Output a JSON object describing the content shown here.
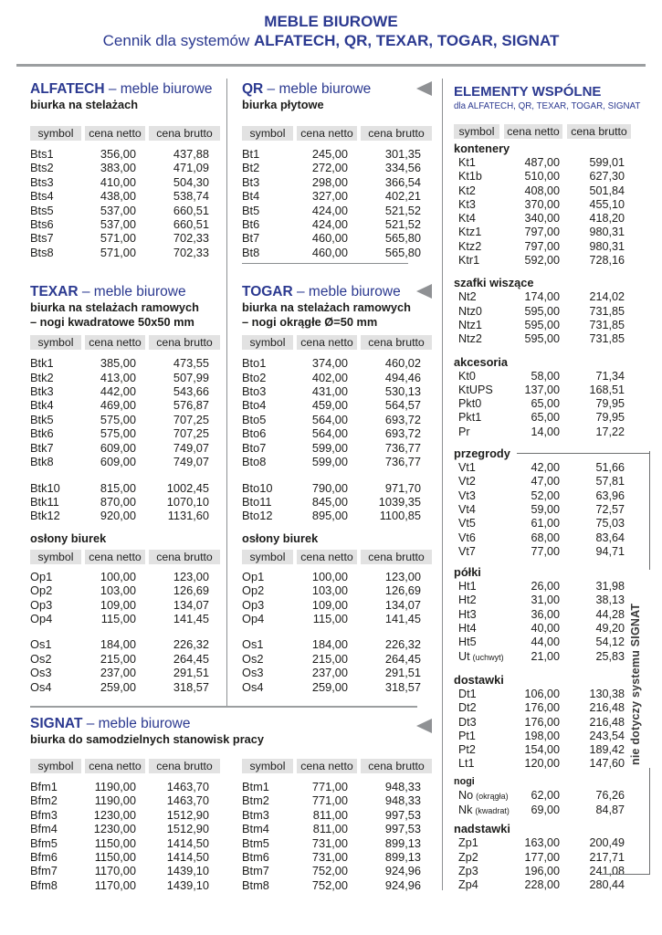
{
  "page": {
    "title": "MEBLE BIUROWE",
    "subtitle_prefix": "Cennik dla systemów ",
    "subtitle_systems": "ALFATECH, QR, TEXAR, TOGAR, SIGNAT"
  },
  "table_headers": [
    "symbol",
    "cena netto",
    "cena brutto"
  ],
  "sections": {
    "alfatech": {
      "name": "ALFATECH",
      "suffix": " – meble biurowe",
      "subtitle_lines": [
        "biurka na stelażach"
      ],
      "row_groups": [
        [
          [
            "Bts1",
            "356,00",
            "437,88"
          ],
          [
            "Bts2",
            "383,00",
            "471,09"
          ],
          [
            "Bts3",
            "410,00",
            "504,30"
          ],
          [
            "Bts4",
            "438,00",
            "538,74"
          ],
          [
            "Bts5",
            "537,00",
            "660,51"
          ],
          [
            "Bts6",
            "537,00",
            "660,51"
          ],
          [
            "Bts7",
            "571,00",
            "702,33"
          ],
          [
            "Bts8",
            "571,00",
            "702,33"
          ]
        ]
      ]
    },
    "qr": {
      "name": "QR",
      "suffix": " – meble biurowe",
      "subtitle_lines": [
        "biurka płytowe"
      ],
      "row_groups": [
        [
          [
            "Bt1",
            "245,00",
            "301,35"
          ],
          [
            "Bt2",
            "272,00",
            "334,56"
          ],
          [
            "Bt3",
            "298,00",
            "366,54"
          ],
          [
            "Bt4",
            "327,00",
            "402,21"
          ],
          [
            "Bt5",
            "424,00",
            "521,52"
          ],
          [
            "Bt6",
            "424,00",
            "521,52"
          ],
          [
            "Bt7",
            "460,00",
            "565,80"
          ],
          [
            "Bt8",
            "460,00",
            "565,80"
          ]
        ]
      ]
    },
    "texar": {
      "name": "TEXAR",
      "suffix": " – meble biurowe",
      "subtitle_lines": [
        "biurka na stelażach ramowych",
        "– nogi kwadratowe 50x50 mm"
      ],
      "row_groups": [
        [
          [
            "Btk1",
            "385,00",
            "473,55"
          ],
          [
            "Btk2",
            "413,00",
            "507,99"
          ],
          [
            "Btk3",
            "442,00",
            "543,66"
          ],
          [
            "Btk4",
            "469,00",
            "576,87"
          ],
          [
            "Btk5",
            "575,00",
            "707,25"
          ],
          [
            "Btk6",
            "575,00",
            "707,25"
          ],
          [
            "Btk7",
            "609,00",
            "749,07"
          ],
          [
            "Btk8",
            "609,00",
            "749,07"
          ]
        ],
        [
          [
            "Btk10",
            "815,00",
            "1002,45"
          ],
          [
            "Btk11",
            "870,00",
            "1070,10"
          ],
          [
            "Btk12",
            "920,00",
            "1131,60"
          ]
        ]
      ]
    },
    "togar": {
      "name": "TOGAR",
      "suffix": " – meble biurowe",
      "subtitle_lines": [
        "biurka na stelażach ramowych",
        "– nogi okrągłe Ø=50 mm"
      ],
      "row_groups": [
        [
          [
            "Bto1",
            "374,00",
            "460,02"
          ],
          [
            "Bto2",
            "402,00",
            "494,46"
          ],
          [
            "Bto3",
            "431,00",
            "530,13"
          ],
          [
            "Bto4",
            "459,00",
            "564,57"
          ],
          [
            "Bto5",
            "564,00",
            "693,72"
          ],
          [
            "Bto6",
            "564,00",
            "693,72"
          ],
          [
            "Bto7",
            "599,00",
            "736,77"
          ],
          [
            "Bto8",
            "599,00",
            "736,77"
          ]
        ],
        [
          [
            "Bto10",
            "790,00",
            "971,70"
          ],
          [
            "Bto11",
            "845,00",
            "1039,35"
          ],
          [
            "Bto12",
            "895,00",
            "1100,85"
          ]
        ]
      ]
    },
    "oslony_left": {
      "label": "osłony biurek",
      "row_groups": [
        [
          [
            "Op1",
            "100,00",
            "123,00"
          ],
          [
            "Op2",
            "103,00",
            "126,69"
          ],
          [
            "Op3",
            "109,00",
            "134,07"
          ],
          [
            "Op4",
            "115,00",
            "141,45"
          ]
        ],
        [
          [
            "Os1",
            "184,00",
            "226,32"
          ],
          [
            "Os2",
            "215,00",
            "264,45"
          ],
          [
            "Os3",
            "237,00",
            "291,51"
          ],
          [
            "Os4",
            "259,00",
            "318,57"
          ]
        ]
      ]
    },
    "oslony_mid": {
      "label": "osłony biurek",
      "row_groups": [
        [
          [
            "Op1",
            "100,00",
            "123,00"
          ],
          [
            "Op2",
            "103,00",
            "126,69"
          ],
          [
            "Op3",
            "109,00",
            "134,07"
          ],
          [
            "Op4",
            "115,00",
            "141,45"
          ]
        ],
        [
          [
            "Os1",
            "184,00",
            "226,32"
          ],
          [
            "Os2",
            "215,00",
            "264,45"
          ],
          [
            "Os3",
            "237,00",
            "291,51"
          ],
          [
            "Os4",
            "259,00",
            "318,57"
          ]
        ]
      ]
    },
    "signat": {
      "name": "SIGNAT",
      "suffix": " – meble biurowe",
      "subtitle_lines": [
        "biurka do samodzielnych stanowisk pracy"
      ],
      "left_row_groups": [
        [
          [
            "Bfm1",
            "1190,00",
            "1463,70"
          ],
          [
            "Bfm2",
            "1190,00",
            "1463,70"
          ],
          [
            "Bfm3",
            "1230,00",
            "1512,90"
          ],
          [
            "Bfm4",
            "1230,00",
            "1512,90"
          ],
          [
            "Bfm5",
            "1150,00",
            "1414,50"
          ],
          [
            "Bfm6",
            "1150,00",
            "1414,50"
          ],
          [
            "Bfm7",
            "1170,00",
            "1439,10"
          ],
          [
            "Bfm8",
            "1170,00",
            "1439,10"
          ]
        ]
      ],
      "right_row_groups": [
        [
          [
            "Btm1",
            "771,00",
            "948,33"
          ],
          [
            "Btm2",
            "771,00",
            "948,33"
          ],
          [
            "Btm3",
            "811,00",
            "997,53"
          ],
          [
            "Btm4",
            "811,00",
            "997,53"
          ],
          [
            "Btm5",
            "731,00",
            "899,13"
          ],
          [
            "Btm6",
            "731,00",
            "899,13"
          ],
          [
            "Btm7",
            "752,00",
            "924,96"
          ],
          [
            "Btm8",
            "752,00",
            "924,96"
          ]
        ]
      ]
    }
  },
  "common": {
    "title": "ELEMENTY WSPÓLNE",
    "subtitle": "dla ALFATECH, QR, TEXAR, TOGAR, SIGNAT",
    "groups": [
      {
        "label": "kontenery",
        "rows": [
          [
            "Kt1",
            "487,00",
            "599,01"
          ],
          [
            "Kt1b",
            "510,00",
            "627,30"
          ],
          [
            "Kt2",
            "408,00",
            "501,84"
          ],
          [
            "Kt3",
            "370,00",
            "455,10"
          ],
          [
            "Kt4",
            "340,00",
            "418,20"
          ],
          [
            "Ktz1",
            "797,00",
            "980,31"
          ],
          [
            "Ktz2",
            "797,00",
            "980,31"
          ],
          [
            "Ktr1",
            "592,00",
            "728,16"
          ]
        ]
      },
      {
        "label": "szafki wiszące",
        "rows": [
          [
            "Nt2",
            "174,00",
            "214,02"
          ],
          [
            "Ntz0",
            "595,00",
            "731,85"
          ],
          [
            "Ntz1",
            "595,00",
            "731,85"
          ],
          [
            "Ntz2",
            "595,00",
            "731,85"
          ]
        ]
      },
      {
        "label": "akcesoria",
        "rows": [
          [
            "Kt0",
            "58,00",
            "71,34"
          ],
          [
            "KtUPS",
            "137,00",
            "168,51"
          ],
          [
            "Pkt0",
            "65,00",
            "79,95"
          ],
          [
            "Pkt1",
            "65,00",
            "79,95"
          ],
          [
            "Pr",
            "14,00",
            "17,22"
          ]
        ]
      },
      {
        "label": "przegrody",
        "dash": true,
        "rows": [
          [
            "Vt1",
            "42,00",
            "51,66"
          ],
          [
            "Vt2",
            "47,00",
            "57,81"
          ],
          [
            "Vt3",
            "52,00",
            "63,96"
          ],
          [
            "Vt4",
            "59,00",
            "72,57"
          ],
          [
            "Vt5",
            "61,00",
            "75,03"
          ],
          [
            "Vt6",
            "68,00",
            "83,64"
          ],
          [
            "Vt7",
            "77,00",
            "94,71"
          ]
        ]
      },
      {
        "label": "półki",
        "rows": [
          [
            "Ht1",
            "26,00",
            "31,98"
          ],
          [
            "Ht2",
            "31,00",
            "38,13"
          ],
          [
            "Ht3",
            "36,00",
            "44,28"
          ],
          [
            "Ht4",
            "40,00",
            "49,20"
          ],
          [
            "Ht5",
            "44,00",
            "54,12"
          ],
          [
            "Ut",
            "(uchwyt)",
            "21,00",
            "25,83"
          ]
        ]
      },
      {
        "label": "dostawki",
        "rows": [
          [
            "Dt1",
            "106,00",
            "130,38"
          ],
          [
            "Dt2",
            "176,00",
            "216,48"
          ],
          [
            "Dt3",
            "176,00",
            "216,48"
          ],
          [
            "Pt1",
            "198,00",
            "243,54"
          ],
          [
            "Pt2",
            "154,00",
            "189,42"
          ],
          [
            "Lt1",
            "120,00",
            "147,60"
          ]
        ]
      },
      {
        "label": "nogi",
        "small": true,
        "rows": [
          [
            "No",
            "(okrągła)",
            "62,00",
            "76,26"
          ],
          [
            "Nk",
            "(kwadrat)",
            "69,00",
            "84,87"
          ]
        ]
      },
      {
        "label": "nadstawki",
        "rows": [
          [
            "Zp1",
            "163,00",
            "200,49"
          ],
          [
            "Zp2",
            "177,00",
            "217,71"
          ],
          [
            "Zp3",
            "196,00",
            "241,08"
          ],
          [
            "Zp4",
            "228,00",
            "280,44"
          ]
        ]
      }
    ],
    "bracket_note": "nie dotyczy systemu SIGNAT"
  },
  "icons": {
    "section_marker": "left-triangle"
  },
  "colors": {
    "accent": "#2B3990",
    "text": "#1d1d1b",
    "line": "#8e9193",
    "header_bg": "#e2e2e2",
    "marker": "#8f9194"
  }
}
